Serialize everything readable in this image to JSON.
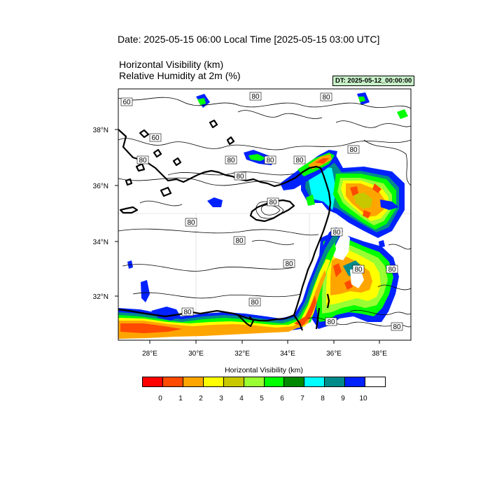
{
  "header": {
    "date_title": "Date: 2025-05-15  06:00 Local Time [2025-05-15  03:00 UTC]",
    "var_title_1": "Horizontal Visibility   (km)",
    "var_title_2": "Relative Humidity at 2m   (%)",
    "dt_badge": "DT: 2025-05-12_00:00:00"
  },
  "axes": {
    "lat_labels": [
      "38°N",
      "36°N",
      "34°N",
      "32°N"
    ],
    "lon_labels": [
      "28°E",
      "30°E",
      "32°E",
      "34°E",
      "36°E",
      "38°E"
    ]
  },
  "contour_labels": [
    "80",
    "60",
    "80",
    "60",
    "80",
    "80",
    "80",
    "80",
    "80",
    "80",
    "80",
    "80",
    "80",
    "80",
    "80",
    "80",
    "80",
    "80"
  ],
  "colorbar": {
    "title": "Horizontal Visibility  (km)",
    "colors": [
      "#ff0000",
      "#ff4a00",
      "#ffa500",
      "#ffff00",
      "#c8c800",
      "#99ff33",
      "#00ff00",
      "#008800",
      "#00ffff",
      "#008b8b",
      "#0022ff",
      "#ffffff"
    ],
    "tick_labels": [
      "0",
      "1",
      "2",
      "3",
      "4",
      "5",
      "6",
      "7",
      "8",
      "9",
      "10"
    ]
  }
}
